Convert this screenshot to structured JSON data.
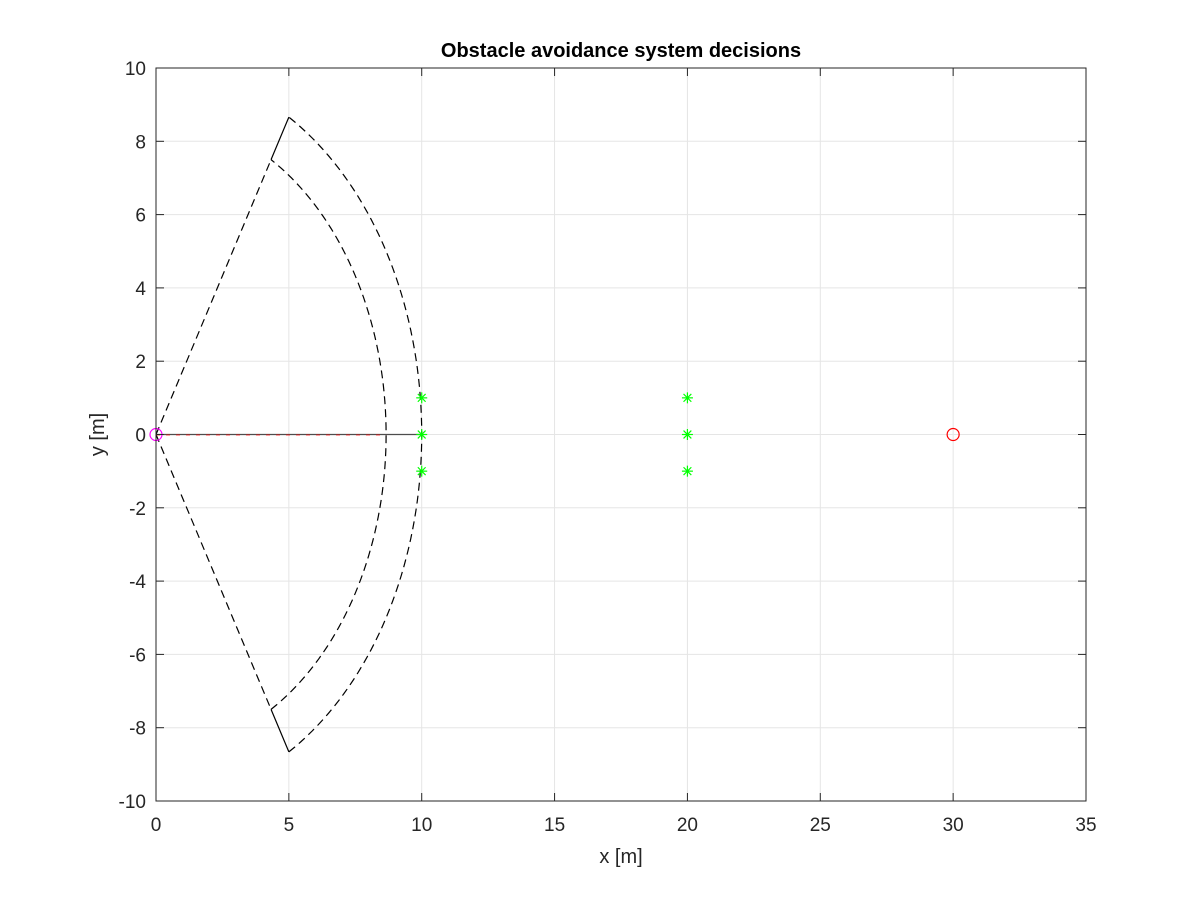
{
  "chart_data": {
    "type": "scatter",
    "title": "Obstacle avoidance system decisions",
    "xlabel": "x [m]",
    "ylabel": "y [m]",
    "xlim": [
      0,
      35
    ],
    "ylim": [
      -10,
      10
    ],
    "grid": true,
    "x_ticks": [
      0,
      5,
      10,
      15,
      20,
      25,
      30,
      35
    ],
    "y_ticks": [
      -10,
      -8,
      -6,
      -4,
      -2,
      0,
      2,
      4,
      6,
      8,
      10
    ],
    "colors": {
      "obstacle": "#00ff00",
      "target": "#ff0000",
      "start": "#ff00ff",
      "sensor_fov": "#000000",
      "path": "#ff0000",
      "grid": "#e5e5e5",
      "axis": "#262626"
    },
    "series": [
      {
        "marker": "asterisk",
        "color": "#00ff00",
        "points": [
          [
            10,
            1
          ],
          [
            10,
            0
          ],
          [
            10,
            -1
          ],
          [
            20,
            1
          ],
          [
            20,
            0
          ],
          [
            20,
            -1
          ]
        ]
      },
      {
        "marker": "circle",
        "color": "#ff0000",
        "points": [
          [
            30,
            0
          ]
        ]
      },
      {
        "marker": "circle",
        "color": "#ff00ff",
        "points": [
          [
            0,
            0
          ]
        ]
      }
    ],
    "sensor_sector": {
      "origin": [
        0,
        0
      ],
      "outer_radius": 10,
      "inner_radius": 8.66,
      "half_angle_deg": 60,
      "heading_deg": 0
    },
    "path_line": {
      "from": [
        0,
        0
      ],
      "to": [
        10,
        0
      ]
    }
  }
}
